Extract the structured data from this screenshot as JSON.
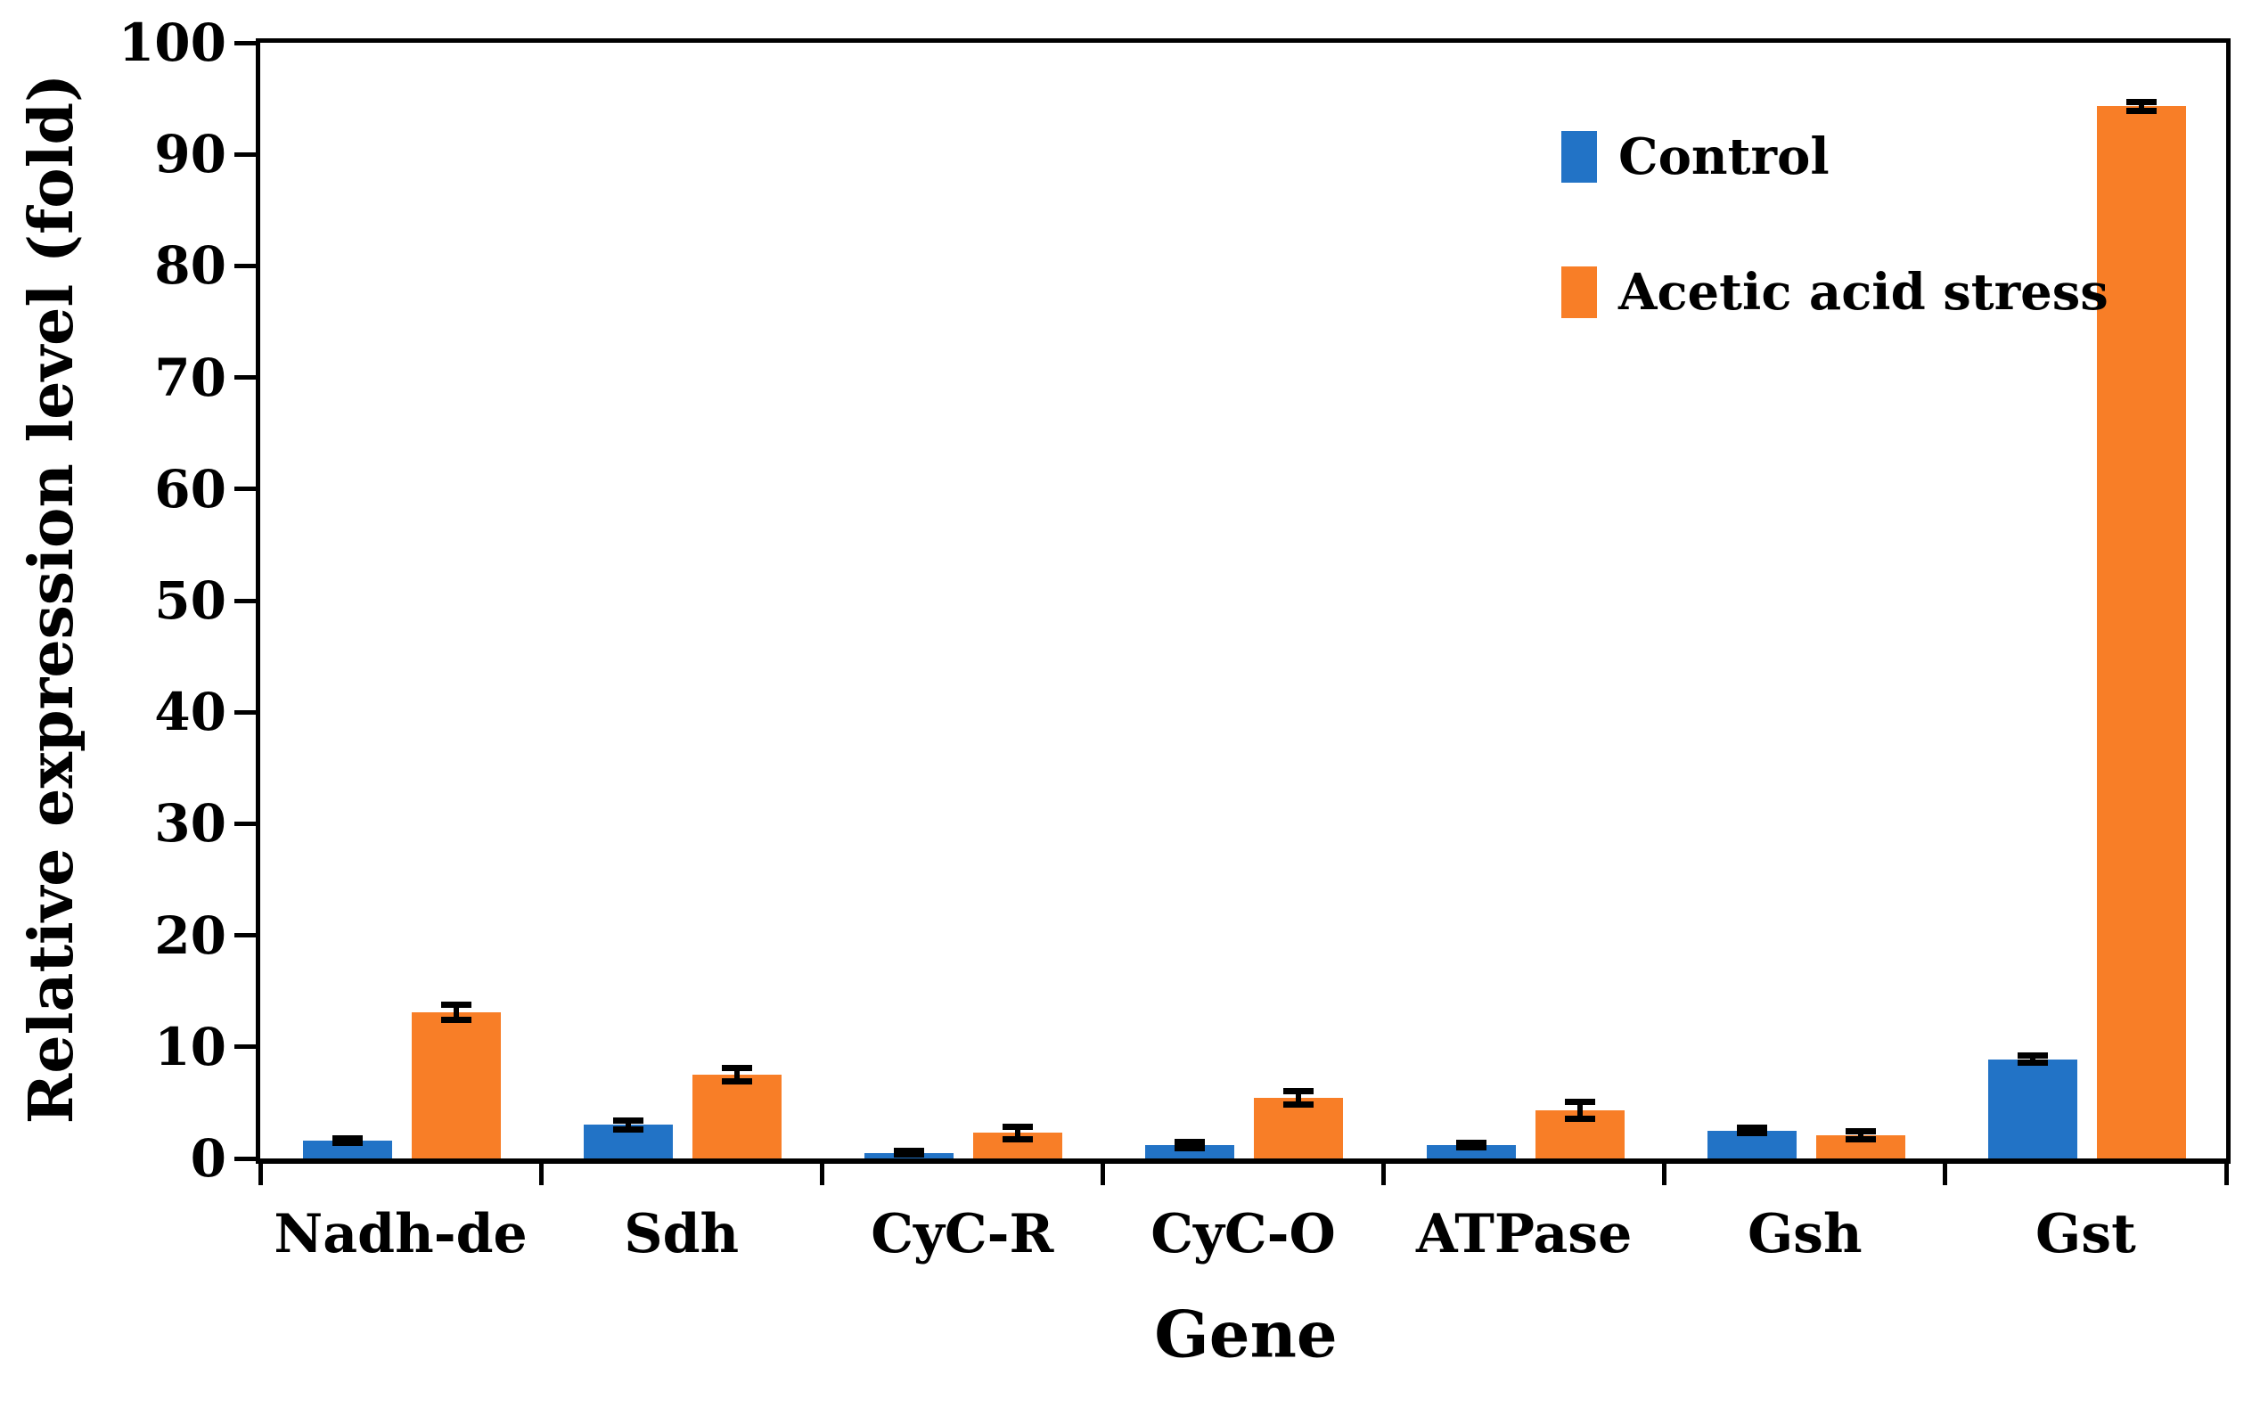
{
  "chart_data": {
    "type": "bar",
    "title": "",
    "xlabel": "Gene",
    "ylabel": "Relative expression level (fold)",
    "ylim": [
      0,
      100
    ],
    "yticks": [
      0,
      10,
      20,
      30,
      40,
      50,
      60,
      70,
      80,
      90,
      100
    ],
    "grid": false,
    "error_bars": true,
    "legend_position": "top-right-inside",
    "frame_color": "#000000",
    "background_color": "#ffffff",
    "categories": [
      "Nadh-de",
      "Sdh",
      "CyC-R",
      "CyC-O",
      "ATPase",
      "Gsh",
      "Gst"
    ],
    "series": [
      {
        "name": "Control",
        "color": "#2273C6",
        "values": [
          1.6,
          3.0,
          0.5,
          1.2,
          1.2,
          2.5,
          8.9
        ],
        "errors": [
          0.2,
          0.4,
          0.15,
          0.3,
          0.2,
          0.25,
          0.3
        ]
      },
      {
        "name": "Acetic acid stress",
        "color": "#F87E27",
        "values": [
          13.1,
          7.5,
          2.3,
          5.4,
          4.3,
          2.1,
          94.3
        ],
        "errors": [
          0.7,
          0.6,
          0.55,
          0.6,
          0.75,
          0.35,
          0.4
        ]
      }
    ]
  }
}
